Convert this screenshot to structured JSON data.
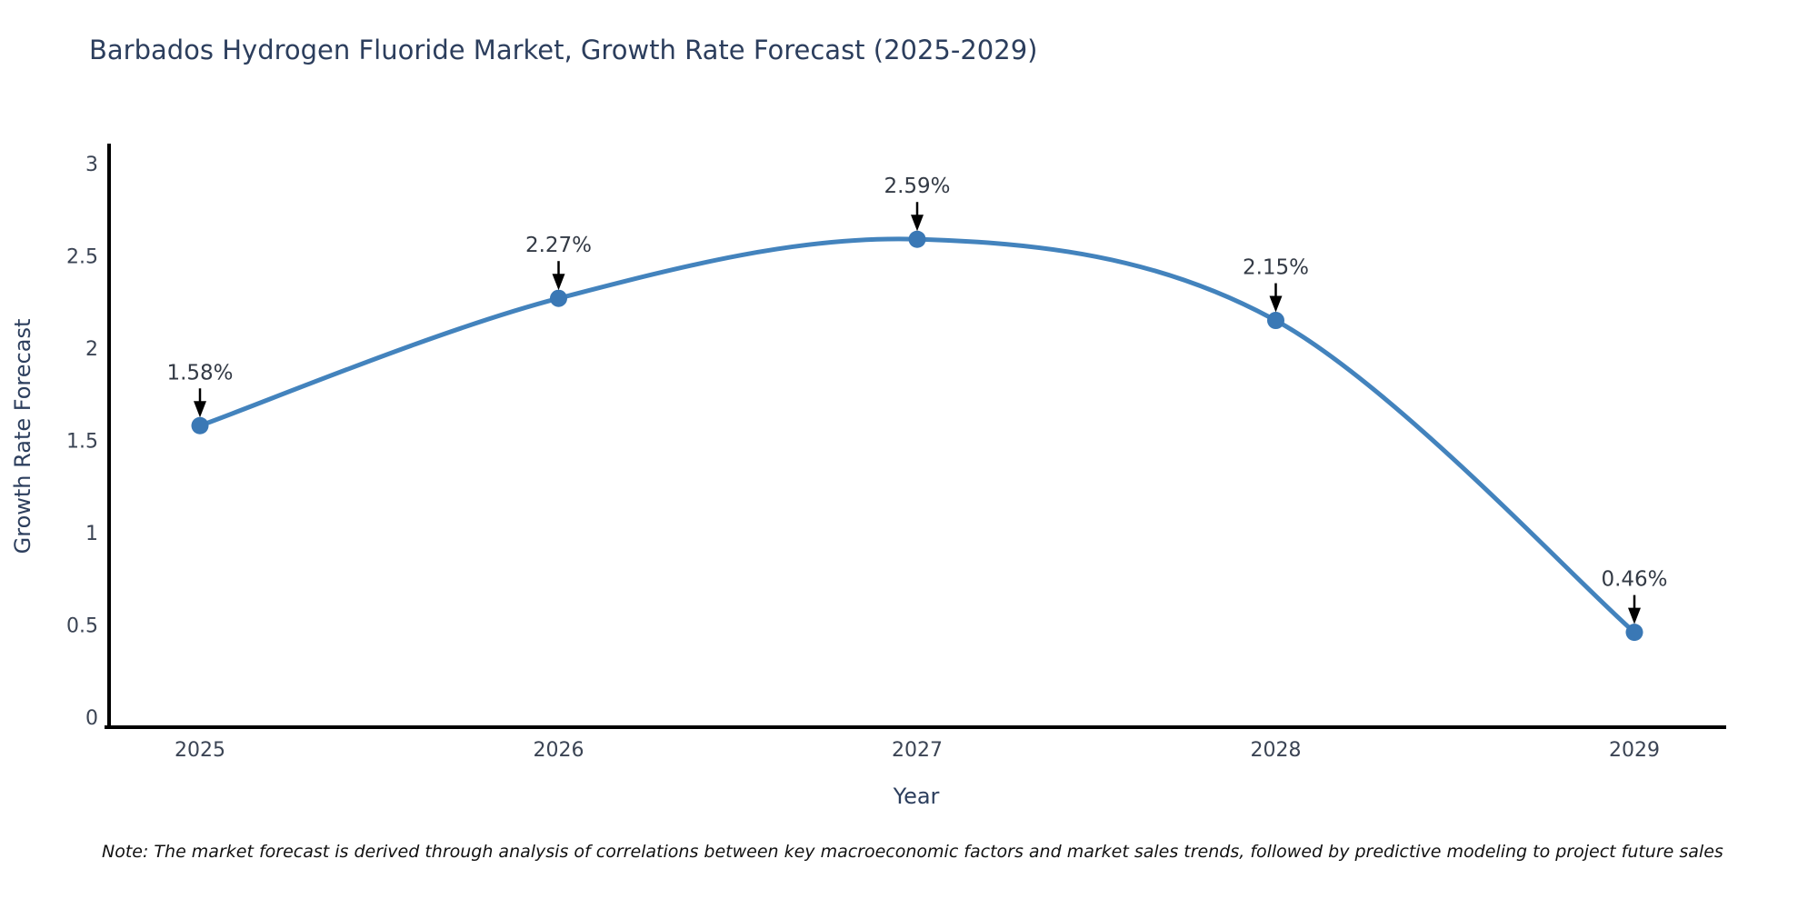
{
  "note": "Note: The market forecast is derived through analysis of correlations between key macroeconomic factors and market sales trends, followed by predictive modeling to project future sales",
  "chart_data": {
    "type": "line",
    "title": "Barbados Hydrogen Fluoride Market, Growth Rate Forecast (2025-2029)",
    "xlabel": "Year",
    "ylabel": "Growth Rate Forecast",
    "x": [
      "2025",
      "2026",
      "2027",
      "2028",
      "2029"
    ],
    "values": [
      1.58,
      2.27,
      2.59,
      2.15,
      0.46
    ],
    "point_labels": [
      "1.58%",
      "2.27%",
      "2.59%",
      "2.15%",
      "0.46%"
    ],
    "yticks": [
      0,
      0.5,
      1,
      1.5,
      2,
      2.5,
      3
    ],
    "ylim": [
      0,
      3
    ],
    "grid": false,
    "legend": "none",
    "line_shape": "spline",
    "marker": "circle",
    "annotation_style": "value-label-with-down-arrow",
    "colors": {
      "line": "#4383bd",
      "marker": "#3a78b5",
      "axis": "#000000",
      "tick_text": "#3b4454",
      "title_text": "#2c3e5d",
      "arrow": "#000000",
      "background": "#ffffff"
    }
  }
}
